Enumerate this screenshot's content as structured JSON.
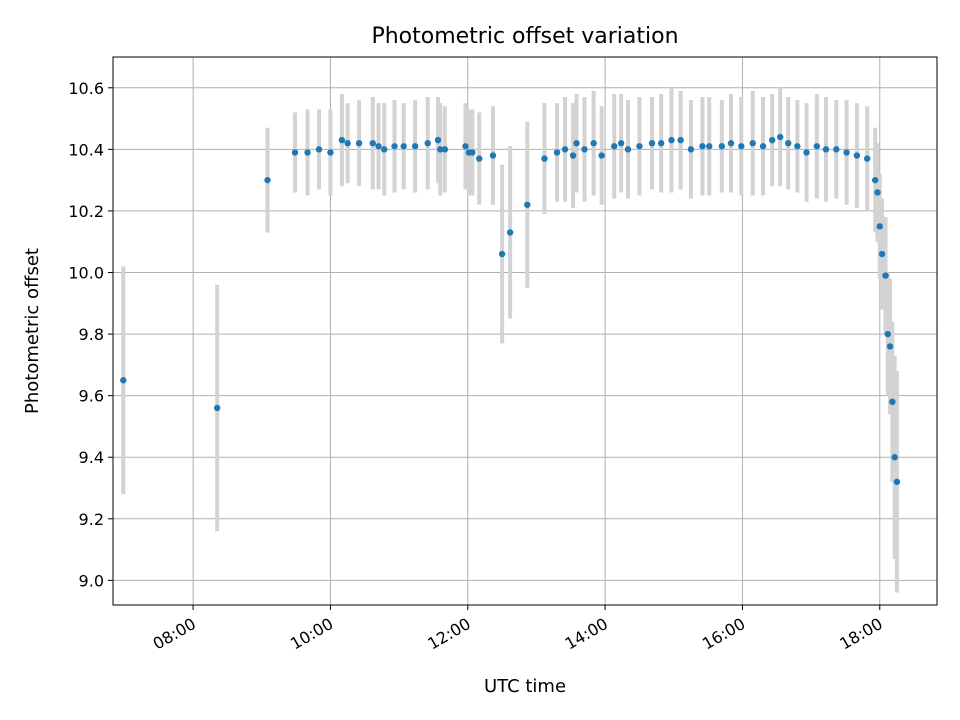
{
  "chart_data": {
    "type": "scatter",
    "title": "Photometric offset variation",
    "xlabel": "UTC time",
    "ylabel": "Photometric offset",
    "x_ticks": [
      "08:00",
      "10:00",
      "12:00",
      "14:00",
      "16:00",
      "18:00"
    ],
    "x_tick_hours": [
      8,
      10,
      12,
      14,
      16,
      18
    ],
    "y_ticks": [
      "9.0",
      "9.2",
      "9.4",
      "9.6",
      "9.8",
      "10.0",
      "10.2",
      "10.4",
      "10.6"
    ],
    "xlim": [
      "06:50",
      "18:50"
    ],
    "ylim": [
      8.92,
      10.7
    ],
    "grid": true,
    "colors": {
      "points": "#1f77b4",
      "error_bars": "#d3d3d3",
      "grid": "#b0b0b0"
    },
    "series": [
      {
        "x": [
          "06:59",
          "08:21",
          "09:05",
          "09:29",
          "09:40",
          "09:50",
          "10:00",
          "10:10",
          "10:15",
          "10:25",
          "10:37",
          "10:42",
          "10:47",
          "10:56",
          "11:04",
          "11:14",
          "11:25",
          "11:34",
          "11:36",
          "11:40",
          "11:58",
          "12:01",
          "12:04",
          "12:10",
          "12:22",
          "12:30",
          "12:37",
          "12:52",
          "13:07",
          "13:18",
          "13:25",
          "13:32",
          "13:35",
          "13:42",
          "13:50",
          "13:57",
          "14:08",
          "14:14",
          "14:20",
          "14:30",
          "14:41",
          "14:49",
          "14:58",
          "15:06",
          "15:15",
          "15:25",
          "15:31",
          "15:42",
          "15:50",
          "15:59",
          "16:09",
          "16:18",
          "16:26",
          "16:33",
          "16:40",
          "16:48",
          "16:56",
          "17:05",
          "17:13",
          "17:22",
          "17:31",
          "17:40",
          "17:49",
          "17:56",
          "17:58",
          "18:00",
          "18:02",
          "18:05",
          "18:07",
          "18:09",
          "18:11",
          "18:13",
          "18:15"
        ],
        "y": [
          9.65,
          9.56,
          10.3,
          10.39,
          10.39,
          10.4,
          10.39,
          10.43,
          10.42,
          10.42,
          10.42,
          10.41,
          10.4,
          10.41,
          10.41,
          10.41,
          10.42,
          10.43,
          10.4,
          10.4,
          10.41,
          10.39,
          10.39,
          10.37,
          10.38,
          10.06,
          10.13,
          10.22,
          10.37,
          10.39,
          10.4,
          10.38,
          10.42,
          10.4,
          10.42,
          10.38,
          10.41,
          10.42,
          10.4,
          10.41,
          10.42,
          10.42,
          10.43,
          10.43,
          10.4,
          10.41,
          10.41,
          10.41,
          10.42,
          10.41,
          10.42,
          10.41,
          10.43,
          10.44,
          10.42,
          10.41,
          10.39,
          10.41,
          10.4,
          10.4,
          10.39,
          10.38,
          10.37,
          10.3,
          10.26,
          10.15,
          10.06,
          9.99,
          9.8,
          9.76,
          9.58,
          9.4,
          9.32
        ],
        "err": [
          0.37,
          0.4,
          0.17,
          0.13,
          0.14,
          0.13,
          0.14,
          0.15,
          0.13,
          0.14,
          0.15,
          0.14,
          0.15,
          0.15,
          0.14,
          0.15,
          0.15,
          0.14,
          0.15,
          0.14,
          0.14,
          0.14,
          0.14,
          0.15,
          0.16,
          0.29,
          0.28,
          0.27,
          0.18,
          0.16,
          0.17,
          0.17,
          0.16,
          0.17,
          0.17,
          0.16,
          0.17,
          0.16,
          0.16,
          0.16,
          0.15,
          0.16,
          0.17,
          0.16,
          0.16,
          0.16,
          0.16,
          0.15,
          0.16,
          0.16,
          0.17,
          0.16,
          0.15,
          0.16,
          0.15,
          0.15,
          0.16,
          0.17,
          0.17,
          0.16,
          0.17,
          0.17,
          0.17,
          0.17,
          0.16,
          0.17,
          0.18,
          0.19,
          0.2,
          0.22,
          0.26,
          0.33,
          0.36
        ]
      }
    ]
  }
}
